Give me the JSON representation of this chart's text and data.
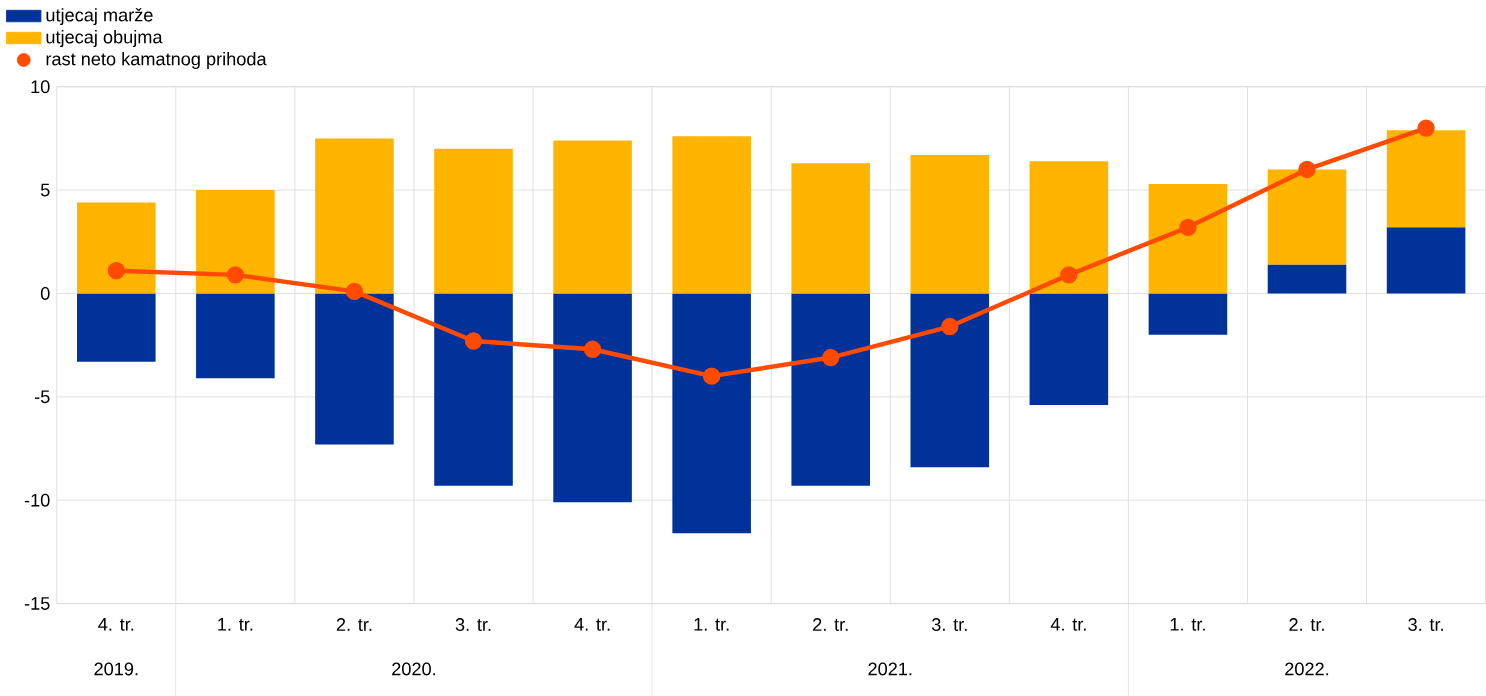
{
  "chart_data": {
    "type": "bar",
    "stacked": true,
    "categories": [
      "4. tr.",
      "1. tr.",
      "2. tr.",
      "3. tr.",
      "4. tr.",
      "1. tr.",
      "2. tr.",
      "3. tr.",
      "4. tr.",
      "1. tr.",
      "2. tr.",
      "3. tr."
    ],
    "annotations": [
      "2019.",
      "2020.",
      "2021.",
      "2022."
    ],
    "series": [
      {
        "name": "utjecaj marže",
        "color": "#003299",
        "values": [
          -3.3,
          -4.1,
          -7.3,
          -9.3,
          -10.1,
          -11.6,
          -9.3,
          -8.4,
          -5.4,
          -2.0,
          1.4,
          3.2
        ]
      },
      {
        "name": "utjecaj obujma",
        "color": "#ffb400",
        "values": [
          4.4,
          5.0,
          7.5,
          7.0,
          7.4,
          7.6,
          6.3,
          6.7,
          6.4,
          5.3,
          4.6,
          4.7
        ]
      },
      {
        "name": "rast neto kamatnog prihoda",
        "type": "line",
        "color": "#ff4b00",
        "values": [
          1.1,
          0.9,
          0.1,
          -2.3,
          -2.7,
          -4.0,
          -3.1,
          -1.6,
          0.9,
          3.2,
          6.0,
          8.0
        ]
      }
    ],
    "ylim": [
      -15,
      10
    ],
    "yticks": [
      -15,
      -10,
      -5,
      0,
      5,
      10
    ],
    "grid": true,
    "legend": "top left",
    "marker": "circle"
  }
}
